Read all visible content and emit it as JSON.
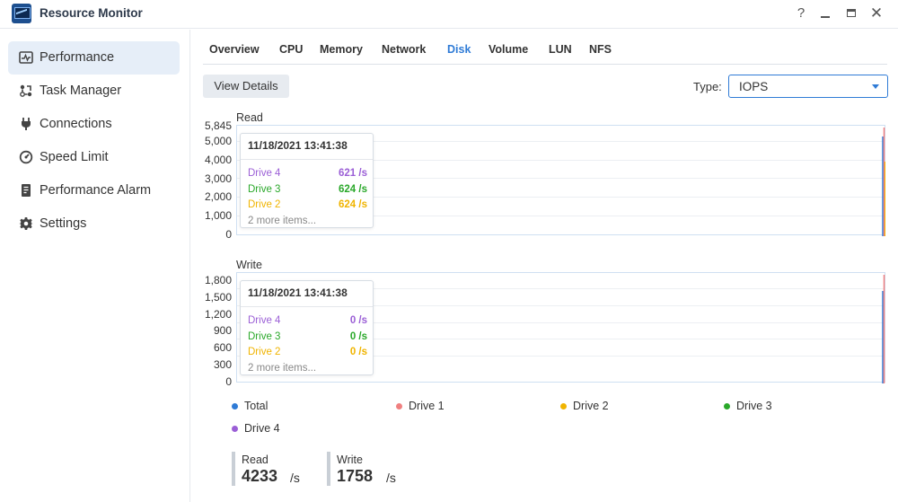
{
  "app": {
    "title": "Resource Monitor"
  },
  "window": {
    "help_icon": "question-icon",
    "help_label": "?"
  },
  "sidebar": {
    "items": [
      {
        "label": "Performance",
        "icon": "performance-icon",
        "active": true
      },
      {
        "label": "Task Manager",
        "icon": "task-manager-icon"
      },
      {
        "label": "Connections",
        "icon": "plug-icon"
      },
      {
        "label": "Speed Limit",
        "icon": "speedometer-icon"
      },
      {
        "label": "Performance Alarm",
        "icon": "alarm-document-icon"
      },
      {
        "label": "Settings",
        "icon": "gear-icon"
      }
    ]
  },
  "tabs": [
    "Overview",
    "CPU",
    "Memory",
    "Network",
    "Disk",
    "Volume",
    "LUN",
    "NFS"
  ],
  "active_tab": "Disk",
  "toolbar": {
    "view_details": "View Details",
    "type_label": "Type:",
    "type_value": "IOPS"
  },
  "charts": {
    "read": {
      "title": "Read",
      "ticks": [
        "5,845",
        "5,000",
        "4,000",
        "3,000",
        "2,000",
        "1,000",
        "0"
      ],
      "tooltip": {
        "time": "11/18/2021 13:41:38",
        "rows": [
          {
            "name": "Drive 4",
            "value": "621 /s"
          },
          {
            "name": "Drive 3",
            "value": "624 /s"
          },
          {
            "name": "Drive 2",
            "value": "624 /s"
          }
        ],
        "more": "2 more items..."
      }
    },
    "write": {
      "title": "Write",
      "ticks": [
        "1,800",
        "1,500",
        "1,200",
        "900",
        "600",
        "300",
        "0"
      ],
      "tooltip": {
        "time": "11/18/2021 13:41:38",
        "rows": [
          {
            "name": "Drive 4",
            "value": "0 /s"
          },
          {
            "name": "Drive 3",
            "value": "0 /s"
          },
          {
            "name": "Drive 2",
            "value": "0 /s"
          }
        ],
        "more": "2 more items..."
      }
    }
  },
  "legend": [
    {
      "label": "Total",
      "color": "#2f7bd6"
    },
    {
      "label": "Drive 1",
      "color": "#f08080"
    },
    {
      "label": "Drive 2",
      "color": "#f0b400"
    },
    {
      "label": "Drive 3",
      "color": "#2aa82a"
    },
    {
      "label": "Drive 4",
      "color": "#9b5fd6"
    }
  ],
  "colors": {
    "accent": "#2f7bd6",
    "drive1": "#f08080",
    "drive2": "#f0b400",
    "drive3": "#2aa82a",
    "drive4": "#9b5fd6"
  },
  "summary": {
    "read": {
      "label": "Read",
      "value": "4233",
      "unit": "/s"
    },
    "write": {
      "label": "Write",
      "value": "1758",
      "unit": "/s"
    }
  }
}
